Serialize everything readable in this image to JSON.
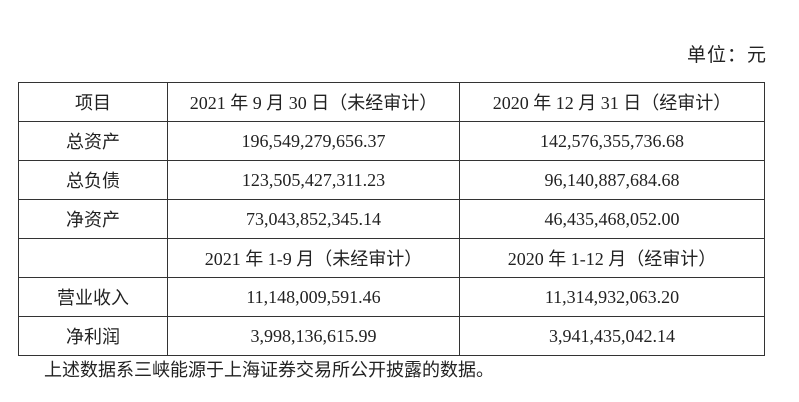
{
  "unit_label": "单位：元",
  "table": {
    "header1": [
      "项目",
      "2021 年 9 月 30 日（未经审计）",
      "2020 年 12 月 31 日（经审计）"
    ],
    "rows1": [
      [
        "总资产",
        "196,549,279,656.37",
        "142,576,355,736.68"
      ],
      [
        "总负债",
        "123,505,427,311.23",
        "96,140,887,684.68"
      ],
      [
        "净资产",
        "73,043,852,345.14",
        "46,435,468,052.00"
      ]
    ],
    "header2": [
      "",
      "2021 年 1-9 月（未经审计）",
      "2020 年 1-12 月（经审计）"
    ],
    "rows2": [
      [
        "营业收入",
        "11,148,009,591.46",
        "11,314,932,063.20"
      ],
      [
        "净利润",
        "3,998,136,615.99",
        "3,941,435,042.14"
      ]
    ]
  },
  "note": "上述数据系三峡能源于上海证券交易所公开披露的数据。"
}
